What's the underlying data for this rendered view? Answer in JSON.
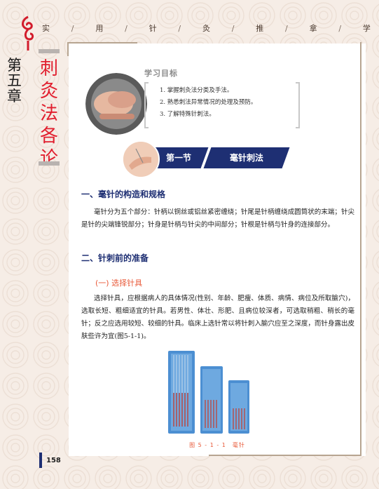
{
  "header": {
    "book_title_chars": [
      "实",
      "用",
      "针",
      "灸",
      "推",
      "拿",
      "学"
    ]
  },
  "chapter": {
    "number": "第五章",
    "title": "刺灸法各论"
  },
  "learning_goals": {
    "label": "学习目标",
    "items": [
      "1. 掌握刺灸法分类及手法。",
      "2. 熟悉刺法异常情况的处理及预防。",
      "3. 了解特殊针刺法。"
    ]
  },
  "section": {
    "number": "第一节",
    "title": "毫针刺法"
  },
  "headings": {
    "h1_a": "一、毫针的构造和规格",
    "h1_b": "二、针刺前的准备",
    "h2_a": "(一) 选择针具"
  },
  "paragraphs": {
    "p1": "毫针分为五个部分：针柄以铜丝或铝丝紧密缠绕；针尾是针柄缠绕成圆筒状的末端；针尖是针的尖端锋锐部分；针身是针柄与针尖的中间部分；针根是针柄与针身的连接部分。",
    "p2": "选择针具，应根据病人的具体情况(性别、年龄、肥瘦、体质、病情、病位及所取腧穴)，选取长短、粗细适宜的针具。若男性、体壮、形肥、且病位较深者，可选取稍粗、稍长的毫针；反之应选用较短、较细的针具。临床上选针常以将针刺入腧穴应至之深度，而针身露出皮肤些许为宜(图5-1-1)。"
  },
  "figure": {
    "caption": "图 5 - 1 - 1　毫针"
  },
  "page_number": "158",
  "colors": {
    "accent_red": "#e11e2e",
    "navy": "#1e2f73",
    "orange_heading": "#e85a3a"
  }
}
